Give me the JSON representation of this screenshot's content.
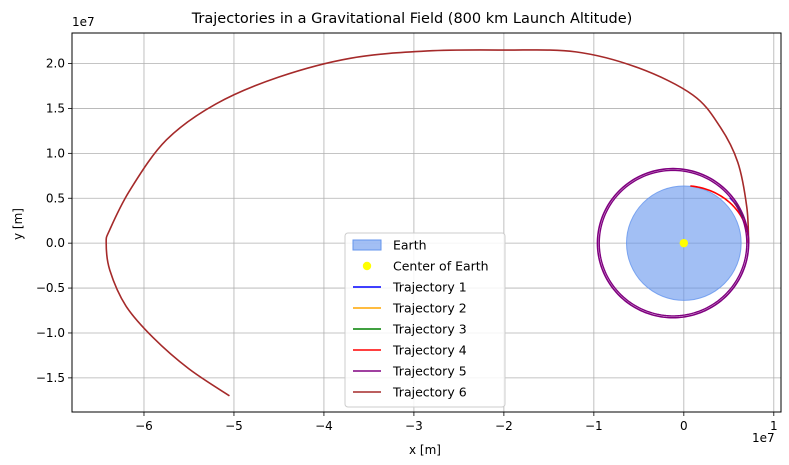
{
  "chart_data": {
    "type": "line",
    "title": "Trajectories in a Gravitational Field (800 km Launch Altitude)",
    "xlabel": "x [m]",
    "ylabel": "y [m]",
    "x_offset_label": "1e7",
    "y_offset_label": "1e7",
    "xlim": [
      -6.8,
      1.08
    ],
    "ylim": [
      -1.88,
      2.34
    ],
    "x_ticks": [
      -6,
      -5,
      -4,
      -3,
      -2,
      -1,
      0,
      1
    ],
    "x_tick_labels": [
      "−6",
      "−5",
      "−4",
      "−3",
      "−2",
      "−1",
      "0",
      "1"
    ],
    "y_ticks": [
      -1.5,
      -1.0,
      -0.5,
      0.0,
      0.5,
      1.0,
      1.5,
      2.0
    ],
    "y_tick_labels": [
      "−1.5",
      "−1.0",
      "−0.5",
      "0.0",
      "0.5",
      "1.0",
      "1.5",
      "2.0"
    ],
    "grid": true,
    "legend_position": "lower-center",
    "earth": {
      "label": "Earth",
      "cx": 0,
      "cy": 0,
      "r": 0.6371,
      "color": "#6495ED",
      "alpha": 0.6
    },
    "center": {
      "label": "Center of Earth",
      "x": 0,
      "y": 0,
      "color": "#ffff00"
    },
    "series": [
      {
        "name": "Trajectory 1",
        "color": "#0000ff",
        "kind": "arc",
        "t_start": 0.5,
        "t_end": 0.78,
        "params": {
          "a": 0.72,
          "b": 0.72,
          "cx": 0,
          "cy": 0
        }
      },
      {
        "name": "Trajectory 2",
        "color": "#ffa500",
        "kind": "arc",
        "t_start": 0.42,
        "t_end": 0.66,
        "params": {
          "a": 0.8,
          "b": 0.75,
          "cx": -0.08,
          "cy": 0
        }
      },
      {
        "name": "Trajectory 3",
        "color": "#008000",
        "kind": "arc",
        "t_start": 0.36,
        "t_end": 0.6,
        "params": {
          "a": 0.88,
          "b": 0.79,
          "cx": -0.16,
          "cy": 0
        }
      },
      {
        "name": "Trajectory 4",
        "color": "#ff0000",
        "kind": "arc",
        "t_start": 0.0,
        "t_end": 1.47,
        "params": {
          "a": 0.72,
          "b": 0.64,
          "cx": 0,
          "cy": 0
        }
      },
      {
        "name": "Trajectory 5",
        "color": "#800080",
        "kind": "ellipse",
        "params": {
          "a": 0.84,
          "b": 0.83,
          "cx": -0.12,
          "cy": 0
        }
      },
      {
        "name": "Trajectory 6",
        "color": "#a52a2a",
        "kind": "spiral",
        "points": [
          [
            0.72,
            0.0
          ],
          [
            0.7,
            0.4
          ],
          [
            0.6,
            0.9
          ],
          [
            0.4,
            1.3
          ],
          [
            0.1,
            1.65
          ],
          [
            -0.5,
            1.95
          ],
          [
            -1.2,
            2.13
          ],
          [
            -2.0,
            2.15
          ],
          [
            -2.85,
            2.14
          ],
          [
            -3.7,
            2.06
          ],
          [
            -4.5,
            1.85
          ],
          [
            -5.2,
            1.55
          ],
          [
            -5.75,
            1.15
          ],
          [
            -6.15,
            0.6
          ],
          [
            -6.38,
            0.15
          ],
          [
            -6.42,
            0.0
          ],
          [
            -6.38,
            -0.3
          ],
          [
            -6.2,
            -0.7
          ],
          [
            -5.9,
            -1.05
          ],
          [
            -5.5,
            -1.4
          ],
          [
            -5.05,
            -1.7
          ]
        ]
      }
    ]
  }
}
